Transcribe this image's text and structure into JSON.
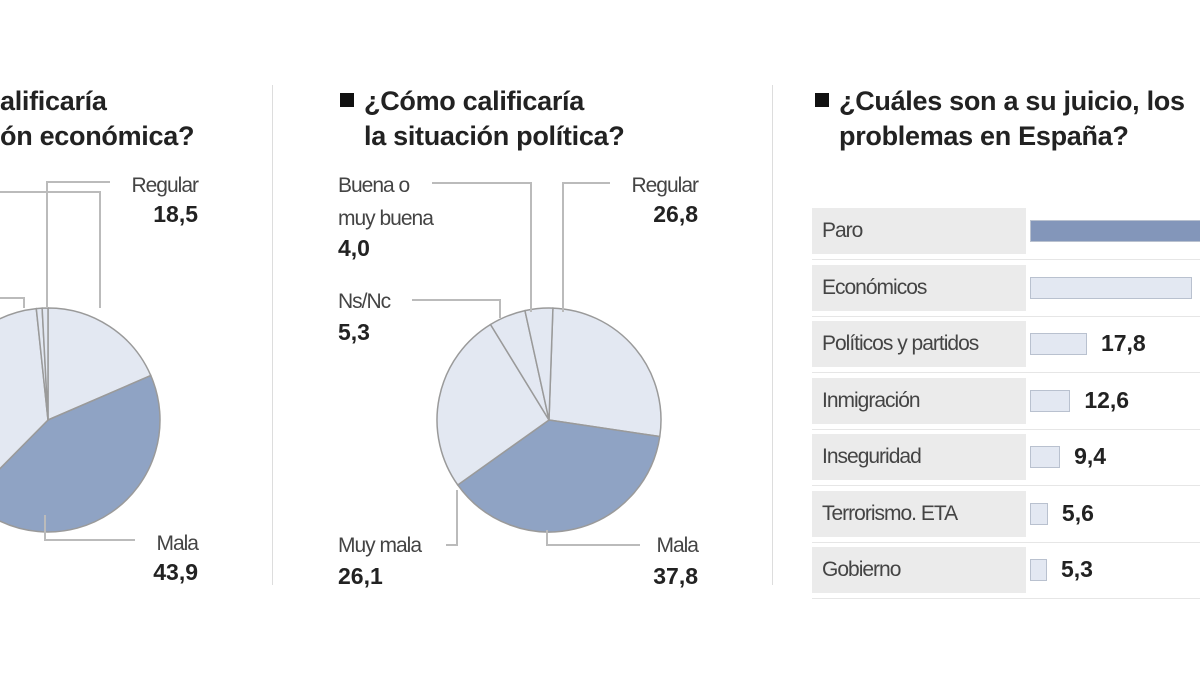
{
  "colors": {
    "dark": "#8fa3c4",
    "light": "#e3e8f2",
    "stroke": "#9a9a9a",
    "bar_dark": "#8396ba",
    "bar_light": "#e3e8f2"
  },
  "chart_data": [
    {
      "type": "pie",
      "title_lines": [
        "¿Cómo calificaría",
        "la situación económica?"
      ],
      "title_visible_lines": [
        "alificaría",
        "ón económica?"
      ],
      "slices": [
        {
          "label": "Regular",
          "value": 18.5,
          "value_label": "18,5",
          "shade": "light"
        },
        {
          "label": "Mala",
          "value": 43.9,
          "value_label": "43,9",
          "shade": "dark"
        }
      ],
      "note": "other slices cropped out of view"
    },
    {
      "type": "pie",
      "title_lines": [
        "¿Cómo calificaría",
        "la situación política?"
      ],
      "slices": [
        {
          "label": "Regular",
          "value": 26.8,
          "value_label": "26,8",
          "shade": "light"
        },
        {
          "label": "Mala",
          "value": 37.8,
          "value_label": "37,8",
          "shade": "dark"
        },
        {
          "label": "Muy mala",
          "value": 26.1,
          "value_label": "26,1",
          "shade": "light"
        },
        {
          "label": "Ns/Nc",
          "value": 5.3,
          "value_label": "5,3",
          "shade": "light"
        },
        {
          "label": "Buena o muy buena",
          "label_lines": [
            "Buena o",
            "muy buena"
          ],
          "value": 4.0,
          "value_label": "4,0",
          "shade": "light"
        }
      ]
    },
    {
      "type": "bar",
      "orientation": "horizontal",
      "title_lines": [
        "¿Cuáles son a su juicio, los",
        "problemas en España?"
      ],
      "categories": [
        "Paro",
        "Económicos",
        "Políticos y partidos",
        "Inmigración",
        "Inseguridad",
        "Terrorismo. ETA",
        "Gobierno"
      ],
      "values": [
        null,
        null,
        17.8,
        12.6,
        9.4,
        5.6,
        5.3
      ],
      "value_labels": [
        "",
        "",
        "17,8",
        "12,6",
        "9,4",
        "5,6",
        "5,3"
      ]
    }
  ]
}
